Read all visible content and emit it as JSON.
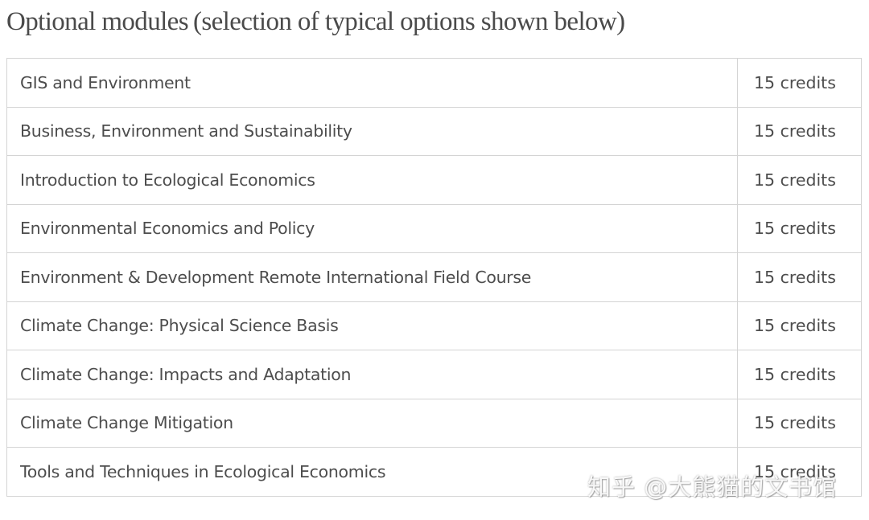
{
  "page": {
    "title": "Optional modules (selection of typical options shown below)"
  },
  "modules": [
    {
      "name": "GIS and Environment",
      "credits": "15 credits"
    },
    {
      "name": "Business, Environment and Sustainability",
      "credits": "15 credits"
    },
    {
      "name": "Introduction to Ecological Economics",
      "credits": "15 credits"
    },
    {
      "name": "Environmental Economics and Policy",
      "credits": "15 credits"
    },
    {
      "name": "Environment & Development Remote International Field Course",
      "credits": "15 credits"
    },
    {
      "name": "Climate Change: Physical Science Basis",
      "credits": "15 credits"
    },
    {
      "name": "Climate Change: Impacts and Adaptation",
      "credits": "15 credits"
    },
    {
      "name": "Climate Change Mitigation",
      "credits": "15 credits"
    },
    {
      "name": "Tools and Techniques in Ecological Economics",
      "credits": "15 credits"
    }
  ],
  "watermark": {
    "text": "知乎 @大熊猫的文书馆"
  }
}
